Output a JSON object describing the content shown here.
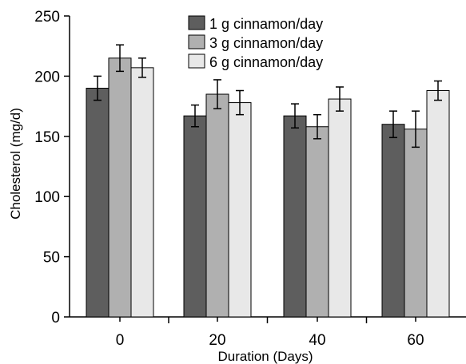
{
  "chart_data": {
    "type": "bar",
    "title": "",
    "xlabel": "Duration (Days)",
    "ylabel": "Cholesterol (mg/d)",
    "categories": [
      "0",
      "20",
      "40",
      "60"
    ],
    "ylim": [
      0,
      250
    ],
    "yticks": [
      0,
      50,
      100,
      150,
      200,
      250
    ],
    "grid": false,
    "legend_position": "top-center",
    "series": [
      {
        "name": "1 g cinnamon/day",
        "color": "#5e5e5e",
        "values": [
          190,
          167,
          167,
          160
        ],
        "errors": [
          10,
          9,
          10,
          11
        ]
      },
      {
        "name": "3 g cinnamon/day",
        "color": "#b0b0b0",
        "values": [
          215,
          185,
          158,
          156
        ],
        "errors": [
          11,
          12,
          10,
          15
        ]
      },
      {
        "name": "6 g cinnamon/day",
        "color": "#e8e8e8",
        "values": [
          207,
          178,
          181,
          188
        ],
        "errors": [
          8,
          10,
          10,
          8
        ]
      }
    ]
  }
}
